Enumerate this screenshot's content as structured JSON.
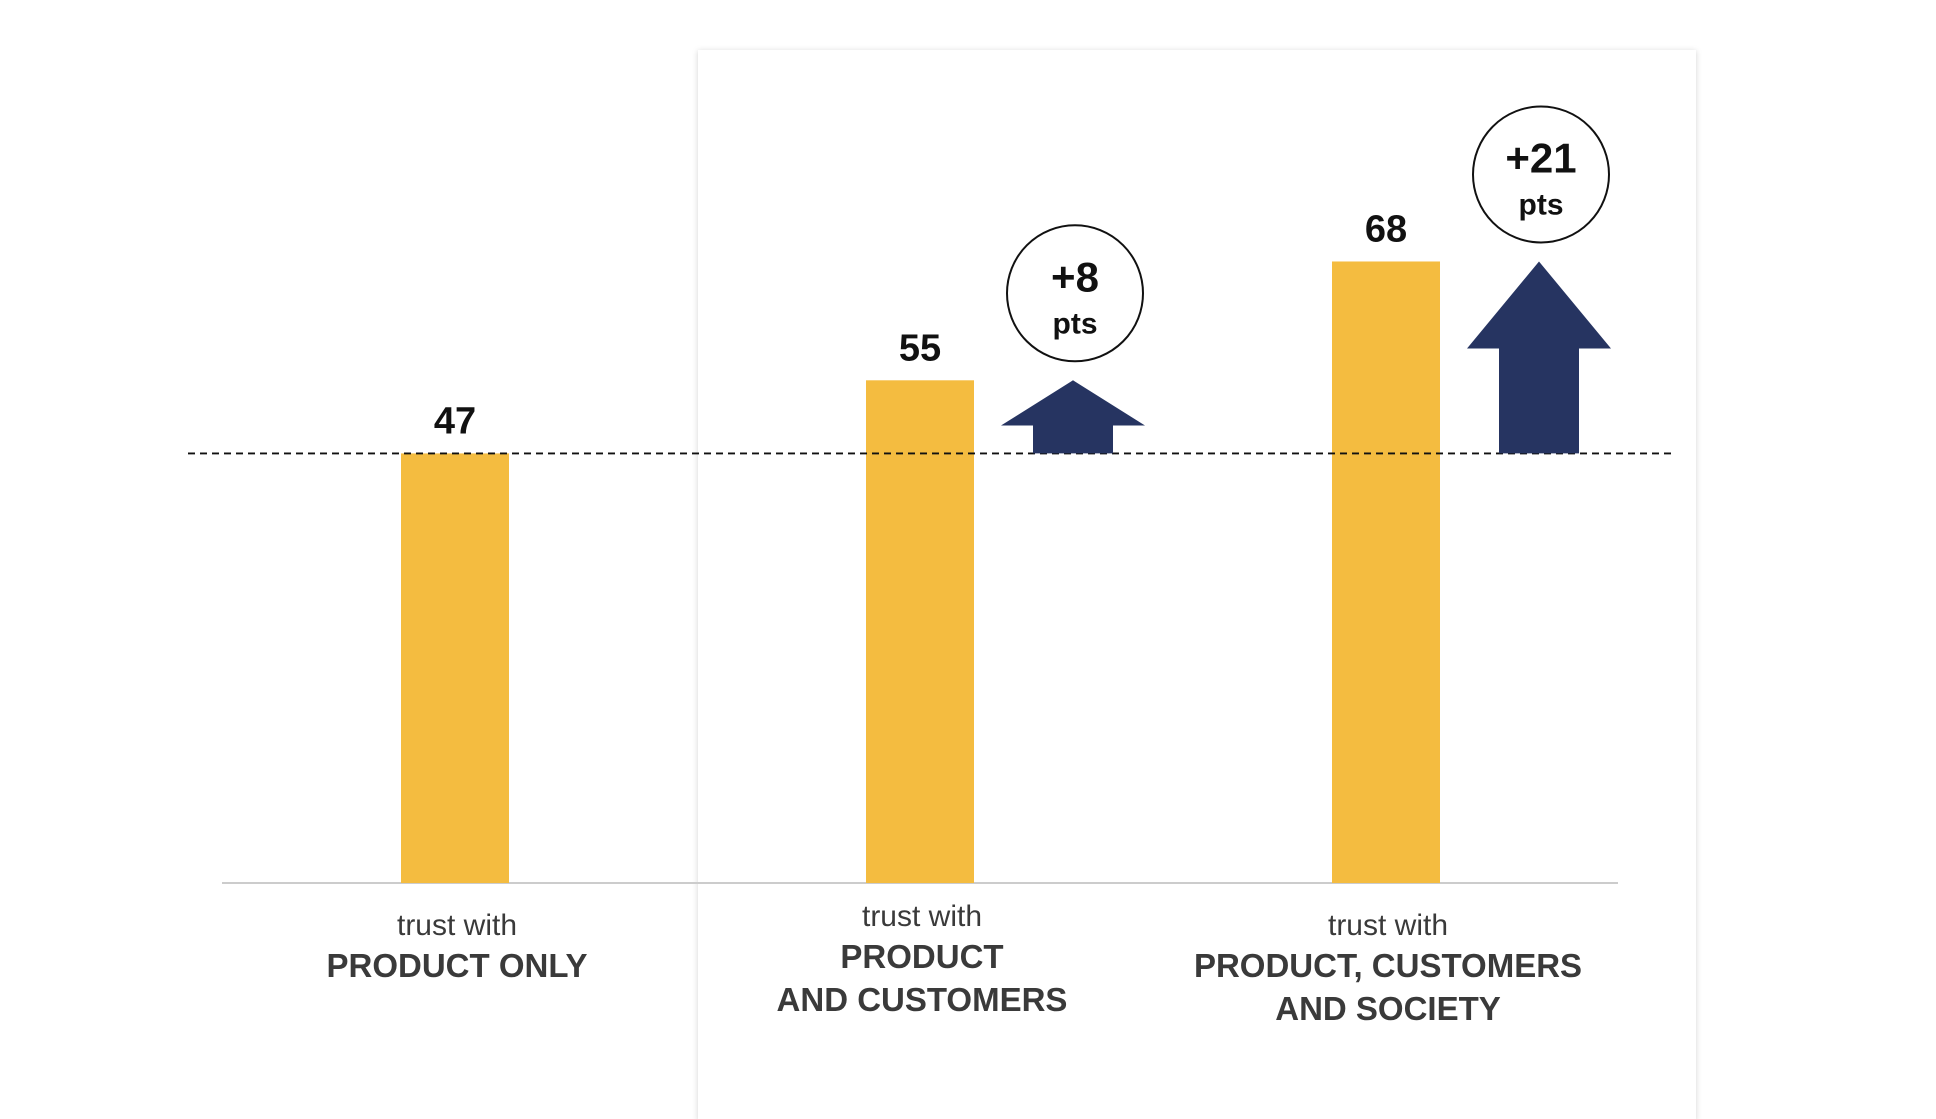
{
  "chart_data": {
    "type": "bar",
    "values": [
      47,
      55,
      68
    ],
    "categories": [
      {
        "prefix": "trust with",
        "lines": [
          "PRODUCT ONLY"
        ]
      },
      {
        "prefix": "trust with",
        "lines": [
          "PRODUCT",
          "AND CUSTOMERS"
        ]
      },
      {
        "prefix": "trust with",
        "lines": [
          "PRODUCT, CUSTOMERS",
          "AND SOCIETY"
        ]
      }
    ],
    "deltas": [
      null,
      {
        "value": "+8",
        "unit": "pts"
      },
      {
        "value": "+21",
        "unit": "pts"
      }
    ],
    "baseline_value": 47,
    "ylim": [
      0,
      68
    ],
    "title": "",
    "xlabel": "",
    "ylabel": "",
    "grid": false,
    "highlighted_categories": [
      1,
      2
    ]
  },
  "colors": {
    "bar": "#F4BC40",
    "arrow": "#263461",
    "axis": "#cccccc",
    "baseline": "#111111",
    "text": "#3a3a3a",
    "panel_border": "#dddddd"
  }
}
